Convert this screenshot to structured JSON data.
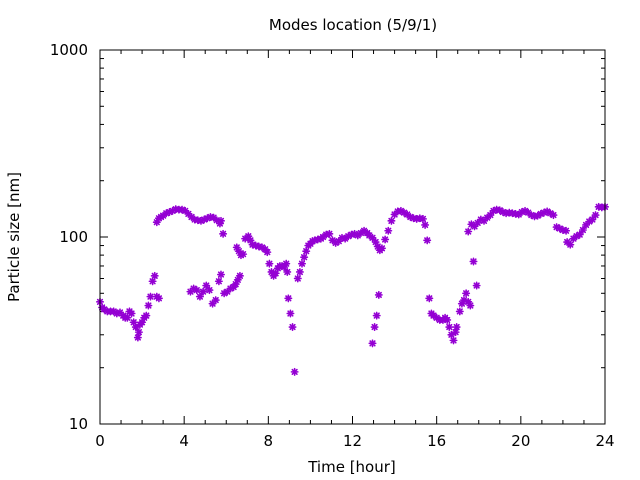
{
  "chart_data": {
    "type": "scatter",
    "title": "Modes location (5/9/1)",
    "xlabel": "Time [hour]",
    "ylabel": "Particle size [nm]",
    "xlim": [
      0,
      24
    ],
    "ylim": [
      10,
      1000
    ],
    "yscale": "log",
    "xticks": [
      "0",
      "4",
      "8",
      "12",
      "16",
      "20",
      "24"
    ],
    "yticks": [
      "10",
      "100",
      "1000"
    ],
    "grid": false,
    "legend": "none",
    "marker_color": "#9400d3",
    "series": [
      {
        "points": [
          [
            0.0,
            45
          ],
          [
            0.1,
            42
          ],
          [
            0.2,
            41
          ],
          [
            0.35,
            40
          ],
          [
            0.5,
            40
          ],
          [
            0.65,
            40
          ],
          [
            0.8,
            39
          ],
          [
            0.95,
            39.5
          ],
          [
            1.1,
            38
          ],
          [
            1.2,
            37
          ],
          [
            1.3,
            37
          ],
          [
            1.4,
            40
          ],
          [
            1.5,
            39
          ],
          [
            1.6,
            35
          ],
          [
            1.7,
            33
          ],
          [
            1.8,
            29
          ],
          [
            1.85,
            31
          ],
          [
            1.9,
            34
          ],
          [
            2.0,
            35
          ],
          [
            2.1,
            37
          ],
          [
            2.2,
            38
          ],
          [
            2.3,
            43
          ],
          [
            2.4,
            48
          ],
          [
            2.5,
            58
          ],
          [
            2.6,
            62
          ],
          [
            2.7,
            48
          ],
          [
            2.8,
            47
          ],
          [
            2.7,
            120
          ],
          [
            2.8,
            126
          ],
          [
            2.9,
            128
          ],
          [
            3.0,
            130
          ],
          [
            3.15,
            134
          ],
          [
            3.3,
            136
          ],
          [
            3.45,
            138
          ],
          [
            3.6,
            141
          ],
          [
            3.75,
            140
          ],
          [
            3.9,
            140
          ],
          [
            4.05,
            138
          ],
          [
            4.2,
            133
          ],
          [
            4.35,
            128
          ],
          [
            4.5,
            124
          ],
          [
            4.65,
            123
          ],
          [
            4.8,
            122
          ],
          [
            4.95,
            124
          ],
          [
            5.1,
            126
          ],
          [
            5.25,
            128
          ],
          [
            5.4,
            127
          ],
          [
            5.55,
            123
          ],
          [
            5.7,
            118
          ],
          [
            5.75,
            122
          ],
          [
            5.85,
            104
          ],
          [
            4.3,
            51
          ],
          [
            4.45,
            53
          ],
          [
            4.6,
            52
          ],
          [
            4.75,
            48
          ],
          [
            4.9,
            51
          ],
          [
            5.05,
            55
          ],
          [
            5.2,
            52
          ],
          [
            5.35,
            44
          ],
          [
            5.5,
            46
          ],
          [
            5.65,
            58
          ],
          [
            5.75,
            63
          ],
          [
            5.9,
            50
          ],
          [
            6.05,
            51
          ],
          [
            6.2,
            53
          ],
          [
            6.35,
            54
          ],
          [
            6.45,
            56
          ],
          [
            6.55,
            59
          ],
          [
            6.65,
            62
          ],
          [
            6.5,
            88
          ],
          [
            6.6,
            84
          ],
          [
            6.7,
            80
          ],
          [
            6.8,
            81
          ],
          [
            6.9,
            98
          ],
          [
            7.05,
            101
          ],
          [
            7.15,
            96
          ],
          [
            7.25,
            91
          ],
          [
            7.4,
            90
          ],
          [
            7.55,
            89
          ],
          [
            7.7,
            88
          ],
          [
            7.85,
            86
          ],
          [
            7.95,
            83
          ],
          [
            8.05,
            72
          ],
          [
            8.15,
            65
          ],
          [
            8.25,
            62
          ],
          [
            8.35,
            64
          ],
          [
            8.45,
            68
          ],
          [
            8.55,
            70
          ],
          [
            8.65,
            70
          ],
          [
            8.75,
            69
          ],
          [
            8.85,
            72
          ],
          [
            8.9,
            65
          ],
          [
            8.95,
            47
          ],
          [
            9.05,
            39
          ],
          [
            9.15,
            33
          ],
          [
            9.25,
            19
          ],
          [
            9.4,
            60
          ],
          [
            9.5,
            65
          ],
          [
            9.6,
            72
          ],
          [
            9.7,
            78
          ],
          [
            9.8,
            84
          ],
          [
            9.9,
            90
          ],
          [
            10.0,
            92
          ],
          [
            10.1,
            95
          ],
          [
            10.2,
            96
          ],
          [
            10.35,
            97
          ],
          [
            10.5,
            98
          ],
          [
            10.6,
            100
          ],
          [
            10.75,
            103
          ],
          [
            10.9,
            104
          ],
          [
            11.05,
            96
          ],
          [
            11.2,
            93
          ],
          [
            11.35,
            95
          ],
          [
            11.5,
            99
          ],
          [
            11.65,
            98
          ],
          [
            11.8,
            101
          ],
          [
            11.95,
            103
          ],
          [
            12.1,
            104
          ],
          [
            12.25,
            102
          ],
          [
            12.4,
            105
          ],
          [
            12.55,
            108
          ],
          [
            12.7,
            105
          ],
          [
            12.8,
            102
          ],
          [
            12.95,
            99
          ],
          [
            13.1,
            94
          ],
          [
            13.2,
            89
          ],
          [
            13.3,
            85
          ],
          [
            13.4,
            87
          ],
          [
            13.55,
            97
          ],
          [
            13.7,
            108
          ],
          [
            13.85,
            122
          ],
          [
            14.0,
            132
          ],
          [
            14.15,
            137
          ],
          [
            14.3,
            138
          ],
          [
            14.45,
            135
          ],
          [
            14.6,
            132
          ],
          [
            14.75,
            128
          ],
          [
            14.9,
            126
          ],
          [
            15.05,
            125
          ],
          [
            15.2,
            126
          ],
          [
            15.35,
            125
          ],
          [
            15.45,
            116
          ],
          [
            15.55,
            96
          ],
          [
            12.95,
            27
          ],
          [
            13.05,
            33
          ],
          [
            13.15,
            38
          ],
          [
            13.25,
            49
          ],
          [
            15.65,
            47
          ],
          [
            15.75,
            39
          ],
          [
            15.85,
            38
          ],
          [
            16.0,
            37
          ],
          [
            16.15,
            36
          ],
          [
            16.3,
            36
          ],
          [
            16.4,
            37
          ],
          [
            16.5,
            36
          ],
          [
            16.6,
            33
          ],
          [
            16.7,
            30
          ],
          [
            16.8,
            28
          ],
          [
            16.9,
            31
          ],
          [
            16.95,
            33
          ],
          [
            17.1,
            40
          ],
          [
            17.2,
            44
          ],
          [
            17.3,
            46
          ],
          [
            17.4,
            50
          ],
          [
            17.5,
            45
          ],
          [
            17.6,
            43
          ],
          [
            17.75,
            74
          ],
          [
            17.9,
            55
          ],
          [
            17.5,
            107
          ],
          [
            17.65,
            117
          ],
          [
            17.8,
            114
          ],
          [
            17.95,
            119
          ],
          [
            18.1,
            124
          ],
          [
            18.25,
            122
          ],
          [
            18.4,
            127
          ],
          [
            18.55,
            131
          ],
          [
            18.7,
            138
          ],
          [
            18.85,
            140
          ],
          [
            19.0,
            139
          ],
          [
            19.15,
            136
          ],
          [
            19.3,
            134
          ],
          [
            19.45,
            135
          ],
          [
            19.6,
            134
          ],
          [
            19.75,
            133
          ],
          [
            19.9,
            132
          ],
          [
            20.05,
            136
          ],
          [
            20.2,
            138
          ],
          [
            20.35,
            135
          ],
          [
            20.5,
            131
          ],
          [
            20.65,
            129
          ],
          [
            20.8,
            130
          ],
          [
            20.95,
            133
          ],
          [
            21.1,
            135
          ],
          [
            21.25,
            137
          ],
          [
            21.4,
            134
          ],
          [
            21.55,
            131
          ],
          [
            21.7,
            113
          ],
          [
            21.85,
            111
          ],
          [
            22.0,
            109
          ],
          [
            22.15,
            108
          ],
          [
            22.2,
            94
          ],
          [
            22.35,
            91
          ],
          [
            22.5,
            98
          ],
          [
            22.65,
            101
          ],
          [
            22.8,
            103
          ],
          [
            22.95,
            109
          ],
          [
            23.1,
            116
          ],
          [
            23.25,
            121
          ],
          [
            23.4,
            124
          ],
          [
            23.55,
            131
          ],
          [
            23.7,
            145
          ],
          [
            23.85,
            144
          ],
          [
            24.0,
            145
          ]
        ]
      }
    ]
  }
}
